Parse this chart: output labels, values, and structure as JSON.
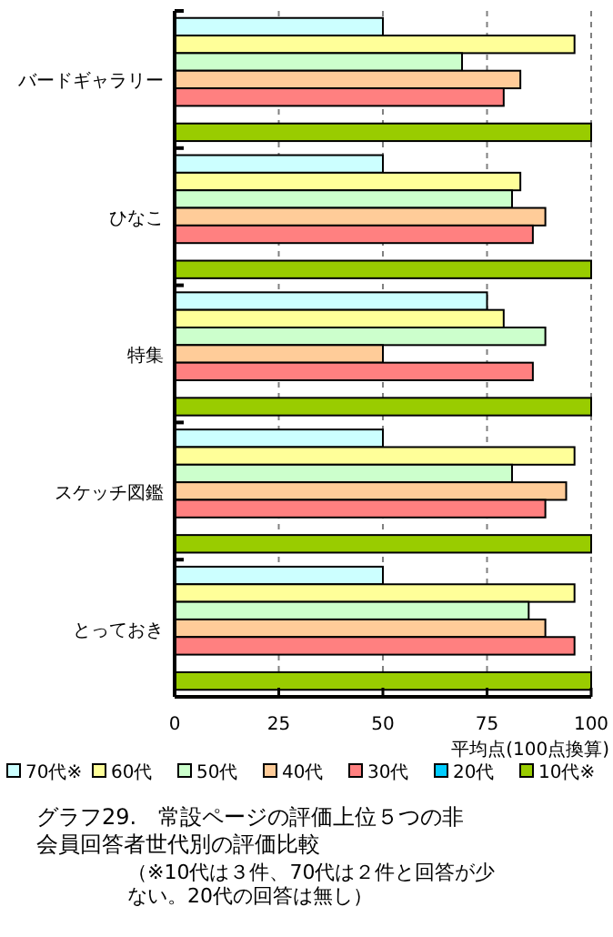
{
  "chart_data": {
    "type": "bar",
    "orientation": "horizontal",
    "title": "グラフ29.　常設ページの評価上位５つの非会員回答者世代別の評価比較",
    "subtitle": "（※10代は３件、70代は２件と回答が少ない。20代の回答は無し）",
    "xlabel": "平均点(100点換算)",
    "categories": [
      "バードギャラリー",
      "ひなこ",
      "特集",
      "スケッチ図鑑",
      "とっておき"
    ],
    "series": [
      {
        "name": "70代※",
        "color": "#ccffff",
        "values": [
          50,
          50,
          75,
          50,
          50
        ]
      },
      {
        "name": "60代",
        "color": "#ffff99",
        "values": [
          96,
          83,
          79,
          96,
          96
        ]
      },
      {
        "name": "50代",
        "color": "#ccffcc",
        "values": [
          69,
          81,
          89,
          81,
          85
        ]
      },
      {
        "name": "40代",
        "color": "#ffcc99",
        "values": [
          83,
          89,
          50,
          94,
          89
        ]
      },
      {
        "name": "30代",
        "color": "#ff8080",
        "values": [
          79,
          86,
          86,
          89,
          96
        ]
      },
      {
        "name": "20代",
        "color": "#00ccff",
        "values": [
          null,
          null,
          null,
          null,
          null
        ]
      },
      {
        "name": "10代※",
        "color": "#99cc00",
        "values": [
          100,
          100,
          100,
          100,
          100
        ]
      }
    ],
    "xlim": [
      0,
      100
    ],
    "xticks": [
      0,
      25,
      50,
      75,
      100
    ],
    "grid": "x",
    "legend": "bottom"
  }
}
